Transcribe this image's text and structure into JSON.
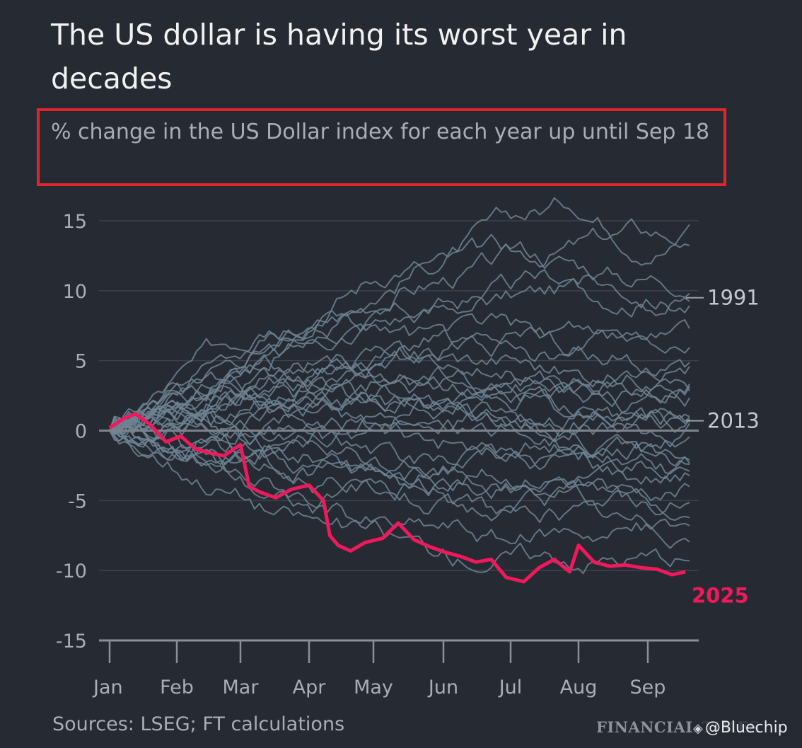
{
  "title": "The US dollar is having its worst year in decades",
  "subtitle": "% change in the US Dollar index for each year up until Sep 18",
  "source": "Sources: LSEG; FT calculations",
  "publisher": "FINANCIAL TIMES",
  "watermark": "@Bluechip",
  "colors": {
    "background": "#262a33",
    "history": "#6e8493",
    "highlight": "#f0195b",
    "annotation_box": "#e0262b"
  },
  "chart_data": {
    "type": "line",
    "title": "The US dollar is having its worst year in decades",
    "subtitle": "% change in the US Dollar index for each year up until Sep 18",
    "ylim": [
      -15,
      15
    ],
    "yticks": [
      "15",
      "10",
      "5",
      "0",
      "-5",
      "-10",
      "-15"
    ],
    "xticks": [
      "Jan",
      "Feb",
      "Mar",
      "Apr",
      "May",
      "Jun",
      "Jul",
      "Aug",
      "Sep"
    ],
    "labels": [
      {
        "text": "1991",
        "y": 9.5
      },
      {
        "text": "2013",
        "y": 0.7
      },
      {
        "text": "2025",
        "y": -11.8
      }
    ],
    "highlight": {
      "name": "2025",
      "x": [
        "Jan 1",
        "Jan 8",
        "Jan 13",
        "Jan 20",
        "Jan 27",
        "Feb 3",
        "Feb 10",
        "Feb 17",
        "Feb 24",
        "Mar 1",
        "Mar 5",
        "Mar 10",
        "Mar 17",
        "Mar 24",
        "Apr 1",
        "Apr 8",
        "Apr 11",
        "Apr 15",
        "Apr 21",
        "Apr 28",
        "May 5",
        "May 12",
        "May 19",
        "May 26",
        "Jun 2",
        "Jun 9",
        "Jun 16",
        "Jun 23",
        "Jun 30",
        "Jul 7",
        "Jul 14",
        "Jul 21",
        "Jul 28",
        "Aug 1",
        "Aug 8",
        "Aug 15",
        "Aug 22",
        "Aug 29",
        "Sep 5",
        "Sep 12",
        "Sep 18"
      ],
      "values": [
        0.2,
        0.9,
        1.2,
        0.4,
        -0.8,
        -0.4,
        -1.3,
        -1.6,
        -1.8,
        -1.0,
        -4.0,
        -4.4,
        -4.8,
        -4.2,
        -3.9,
        -5.0,
        -7.5,
        -8.2,
        -8.6,
        -8.0,
        -7.7,
        -6.6,
        -7.8,
        -8.3,
        -8.7,
        -9.0,
        -9.4,
        -9.2,
        -10.5,
        -10.8,
        -9.8,
        -9.2,
        -10.1,
        -8.2,
        -9.4,
        -9.7,
        -9.6,
        -9.8,
        -9.9,
        -10.3,
        -10.1
      ]
    },
    "historical_series": [
      {
        "name": "1991",
        "values": [
          0,
          2,
          4,
          6,
          7,
          8,
          9,
          9.5,
          10,
          9.6,
          9.5
        ]
      },
      {
        "name": "2013",
        "values": [
          0,
          1,
          1.5,
          2,
          2.5,
          2,
          1.5,
          1,
          0.8,
          0.7,
          0.7
        ]
      },
      {
        "values": [
          0,
          3,
          5,
          7,
          9,
          11,
          13,
          15,
          16.5,
          14,
          13.5
        ]
      },
      {
        "values": [
          0,
          2,
          4,
          6,
          8,
          10,
          11,
          12,
          13,
          14,
          14
        ]
      },
      {
        "values": [
          0,
          3,
          6,
          8,
          10,
          12,
          12,
          13,
          12,
          11,
          11
        ]
      },
      {
        "values": [
          0,
          2,
          4,
          5,
          7,
          8,
          9,
          10,
          11,
          10,
          9
        ]
      },
      {
        "values": [
          0,
          1,
          3,
          4,
          5,
          6,
          7,
          7,
          6,
          6,
          6
        ]
      },
      {
        "values": [
          0,
          2,
          3,
          4,
          4,
          5,
          5,
          5,
          4,
          4,
          4
        ]
      },
      {
        "values": [
          0,
          1,
          2,
          2,
          3,
          3,
          3,
          3,
          3,
          3,
          3
        ]
      },
      {
        "values": [
          0,
          1,
          1,
          1,
          2,
          2,
          2,
          2,
          2,
          2,
          2
        ]
      },
      {
        "values": [
          0,
          0,
          1,
          1,
          1,
          1,
          1,
          1,
          1,
          1,
          1
        ]
      },
      {
        "values": [
          0,
          -1,
          0,
          0,
          0,
          0,
          0,
          0,
          0,
          0,
          0
        ]
      },
      {
        "values": [
          0,
          -1,
          -1,
          -1,
          -1,
          -2,
          -2,
          -2,
          -2,
          -2,
          -2
        ]
      },
      {
        "values": [
          0,
          -1,
          -2,
          -2,
          -2,
          -3,
          -3,
          -3,
          -3,
          -3,
          -3
        ]
      },
      {
        "values": [
          0,
          -1,
          -2,
          -3,
          -4,
          -4,
          -4,
          -5,
          -4,
          -4,
          -4
        ]
      },
      {
        "values": [
          0,
          -2,
          -3,
          -4,
          -5,
          -5,
          -6,
          -6,
          -5,
          -5,
          -5
        ]
      },
      {
        "values": [
          0,
          -1,
          -3,
          -5,
          -6,
          -7,
          -7,
          -8,
          -7,
          -7,
          -7
        ]
      },
      {
        "values": [
          0,
          -2,
          -4,
          -6,
          -7,
          -8,
          -9,
          -9,
          -9,
          -9,
          -9
        ]
      },
      {
        "values": [
          0,
          1,
          3,
          2,
          1,
          0,
          -1,
          -2,
          -2,
          -3,
          -3
        ]
      },
      {
        "values": [
          0,
          2,
          4,
          5,
          4,
          3,
          2,
          1,
          0,
          -1,
          -1
        ]
      },
      {
        "values": [
          0,
          1,
          2,
          4,
          5,
          6,
          5,
          4,
          3,
          4,
          5
        ]
      },
      {
        "values": [
          0,
          2,
          5,
          7,
          8,
          7,
          6,
          5,
          5,
          5,
          5
        ]
      },
      {
        "values": [
          0,
          1,
          1,
          2,
          3,
          4,
          4,
          3,
          2,
          2,
          2
        ]
      },
      {
        "values": [
          0,
          -1,
          -2,
          -1,
          0,
          1,
          2,
          2,
          1,
          1,
          1
        ]
      },
      {
        "values": [
          0,
          0,
          -1,
          -2,
          -3,
          -3,
          -2,
          -1,
          -1,
          -1,
          -1
        ]
      },
      {
        "values": [
          0,
          1,
          2,
          3,
          3,
          2,
          1,
          0,
          -1,
          -2,
          -2
        ]
      },
      {
        "values": [
          0,
          2,
          3,
          3,
          4,
          5,
          6,
          6,
          7,
          7,
          7
        ]
      },
      {
        "values": [
          0,
          -1,
          -2,
          -3,
          -3,
          -4,
          -5,
          -6,
          -6,
          -7,
          -7
        ]
      },
      {
        "values": [
          0,
          1,
          0,
          -1,
          -2,
          -3,
          -3,
          -4,
          -4,
          -5,
          -6
        ]
      },
      {
        "values": [
          0,
          1,
          2,
          1,
          2,
          3,
          3,
          3,
          4,
          3,
          3
        ]
      }
    ]
  }
}
